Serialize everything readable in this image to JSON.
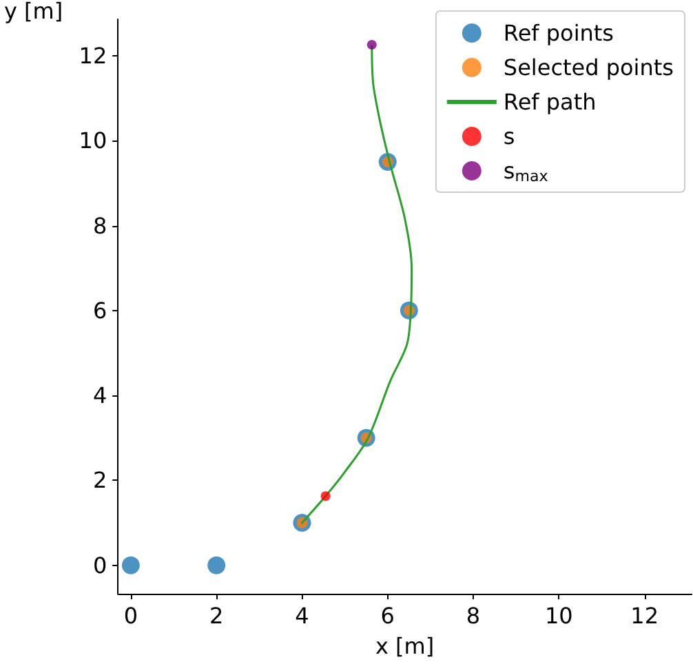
{
  "chart_data": {
    "type": "scatter",
    "xlabel": "x [m]",
    "ylabel": "y [m]",
    "xlim": [
      -0.3,
      13.1
    ],
    "ylim": [
      -0.67,
      12.86
    ],
    "xticks": [
      0,
      2,
      4,
      6,
      8,
      10,
      12
    ],
    "yticks": [
      0,
      2,
      4,
      6,
      8,
      10,
      12
    ],
    "grid": false,
    "legend": "top right",
    "marker": "circle",
    "series": [
      {
        "name": "Ref points",
        "color": "#1f77b4",
        "x": [
          0,
          2,
          4,
          5.5,
          6.5,
          6
        ],
        "values": [
          0,
          0,
          1,
          3,
          6,
          9.5
        ]
      },
      {
        "name": "Selected points",
        "color": "#ff7f0e",
        "x": [
          4,
          5.5,
          6.5,
          6
        ],
        "values": [
          1,
          3,
          6,
          9.5
        ]
      },
      {
        "name": "Ref path",
        "type": "line",
        "marker": "none",
        "line_style": "solid",
        "color": "#2ca02c",
        "x": [
          4.0,
          4.55,
          5.0,
          5.54,
          6.06,
          6.45,
          6.54,
          6.56,
          6.4,
          6.05,
          5.81,
          5.66,
          5.63
        ],
        "values": [
          1.0,
          1.63,
          2.2,
          2.99,
          4.34,
          5.2,
          5.99,
          7.0,
          8.17,
          9.48,
          10.51,
          11.36,
          12.23
        ]
      },
      {
        "name": "s",
        "color": "#ff0000",
        "x": [
          4.55
        ],
        "values": [
          1.63
        ]
      },
      {
        "name": "s$_{max}$",
        "color": "#800080",
        "x": [
          5.63
        ],
        "values": [
          12.26
        ]
      }
    ]
  }
}
